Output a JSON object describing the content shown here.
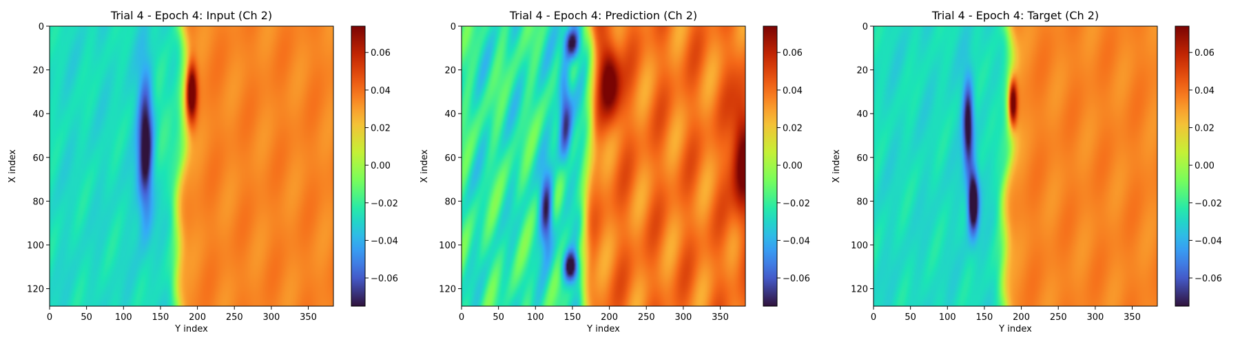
{
  "colormap": {
    "name": "turbo",
    "stops": [
      "#30123b",
      "#4662d8",
      "#35abf8",
      "#1be5b5",
      "#74fe5d",
      "#c9ef34",
      "#fbb938",
      "#f56918",
      "#c92903",
      "#7a0403"
    ]
  },
  "chart_data": [
    {
      "type": "heatmap",
      "title": "Trial 4 - Epoch 4: Input (Ch 2)",
      "xlabel": "Y index",
      "ylabel": "X index",
      "xlim": [
        0,
        384
      ],
      "ylim": [
        128,
        0
      ],
      "xticks": [
        0,
        50,
        100,
        150,
        200,
        250,
        300,
        350
      ],
      "yticks": [
        0,
        20,
        40,
        60,
        80,
        100,
        120
      ],
      "colorbar": {
        "vmin": -0.075,
        "vmax": 0.074,
        "ticks": [
          -0.06,
          -0.04,
          -0.02,
          0.0,
          0.02,
          0.04,
          0.06
        ]
      },
      "field": {
        "left_value": -0.028,
        "right_value": 0.035,
        "front_y": 178,
        "wiggle": 0.004,
        "features": [
          {
            "y": 130,
            "x": 55,
            "sy": 7,
            "sx": 22,
            "v": -0.058
          },
          {
            "y": 192,
            "x": 30,
            "sy": 5,
            "sx": 9,
            "v": 0.06
          },
          {
            "y": 155,
            "x": 45,
            "sy": 10,
            "sx": 18,
            "v": 0.01
          }
        ]
      }
    },
    {
      "type": "heatmap",
      "title": "Trial 4 - Epoch 4: Prediction (Ch 2)",
      "xlabel": "Y index",
      "ylabel": "X index",
      "xlim": [
        0,
        384
      ],
      "ylim": [
        128,
        0
      ],
      "xticks": [
        0,
        50,
        100,
        150,
        200,
        250,
        300,
        350
      ],
      "yticks": [
        0,
        20,
        40,
        60,
        80,
        100,
        120
      ],
      "colorbar": {
        "vmin": -0.075,
        "vmax": 0.074,
        "ticks": [
          -0.06,
          -0.04,
          -0.02,
          0.0,
          0.02,
          0.04,
          0.06
        ]
      },
      "field": {
        "left_value": -0.022,
        "right_value": 0.038,
        "front_y": 172,
        "wiggle": 0.012,
        "features": [
          {
            "y": 148,
            "x": 110,
            "sy": 7,
            "sx": 5,
            "v": -0.065
          },
          {
            "y": 150,
            "x": 8,
            "sy": 7,
            "sx": 5,
            "v": -0.055
          },
          {
            "y": 115,
            "x": 85,
            "sy": 6,
            "sx": 12,
            "v": -0.05
          },
          {
            "y": 140,
            "x": 40,
            "sy": 6,
            "sx": 18,
            "v": -0.045
          },
          {
            "y": 200,
            "x": 25,
            "sy": 10,
            "sx": 12,
            "v": 0.05
          },
          {
            "y": 380,
            "x": 60,
            "sy": 10,
            "sx": 20,
            "v": 0.045
          }
        ]
      }
    },
    {
      "type": "heatmap",
      "title": "Trial 4 - Epoch 4: Target (Ch 2)",
      "xlabel": "Y index",
      "ylabel": "X index",
      "xlim": [
        0,
        384
      ],
      "ylim": [
        128,
        0
      ],
      "xticks": [
        0,
        50,
        100,
        150,
        200,
        250,
        300,
        350
      ],
      "yticks": [
        0,
        20,
        40,
        60,
        80,
        100,
        120
      ],
      "colorbar": {
        "vmin": -0.075,
        "vmax": 0.074,
        "ticks": [
          -0.06,
          -0.04,
          -0.02,
          0.0,
          0.02,
          0.04,
          0.06
        ]
      },
      "field": {
        "left_value": -0.028,
        "right_value": 0.035,
        "front_y": 182,
        "wiggle": 0.004,
        "features": [
          {
            "y": 135,
            "x": 80,
            "sy": 5,
            "sx": 10,
            "v": -0.072
          },
          {
            "y": 128,
            "x": 45,
            "sy": 5,
            "sx": 14,
            "v": -0.055
          },
          {
            "y": 188,
            "x": 35,
            "sy": 4,
            "sx": 8,
            "v": 0.068
          },
          {
            "y": 160,
            "x": 40,
            "sy": 8,
            "sx": 15,
            "v": 0.005
          }
        ]
      }
    }
  ]
}
